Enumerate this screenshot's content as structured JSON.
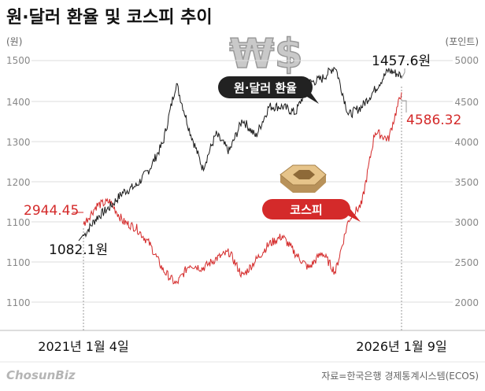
{
  "header": {
    "title": "원·달러 환율 및 코스피 추이",
    "left_unit": "(원)",
    "right_unit": "(포인트)"
  },
  "left_axis_ticks": [
    "1500",
    "1400",
    "1300",
    "1200",
    "1100",
    "1100",
    "1100"
  ],
  "right_axis_ticks": [
    "5000",
    "4500",
    "4000",
    "3500",
    "3000",
    "2500",
    "2000"
  ],
  "x_axis": {
    "start_label": "2021년 1월 4일",
    "end_label": "2026년 1월 9일"
  },
  "annotations": {
    "fx_start": "1082.1원",
    "fx_end": "1457.6원",
    "kospi_start": "2944.45",
    "kospi_end": "4586.32"
  },
  "legend_tags": {
    "fx": "원·달러 환율",
    "kospi": "코스피"
  },
  "decorative_symbol": "₩$",
  "footer": {
    "source": "자료=한국은행 경제통계시스템(ECOS)",
    "brand": "ChosunBiz"
  },
  "colors": {
    "fx_line": "#1a1a1a",
    "kospi_line": "#d42a2a",
    "grid": "#dddddd",
    "tag_black": "#222222",
    "tag_red": "#d42a2a"
  },
  "chart_data": {
    "type": "line",
    "x_start": "2021-01-04",
    "x_end": "2026-01-09",
    "series": [
      {
        "name": "원·달러 환율",
        "axis": "left",
        "x": [
          "2021-01",
          "2021-04",
          "2021-07",
          "2021-10",
          "2022-01",
          "2022-04",
          "2022-07",
          "2022-10",
          "2022-11",
          "2023-01",
          "2023-04",
          "2023-07",
          "2023-10",
          "2024-01",
          "2024-04",
          "2024-07",
          "2024-10",
          "2024-12",
          "2025-02",
          "2025-04",
          "2025-06",
          "2025-08",
          "2025-10",
          "2025-12",
          "2026-01"
        ],
        "values": [
          1082.1,
          1125,
          1150,
          1185,
          1200,
          1240,
          1300,
          1440,
          1330,
          1240,
          1320,
          1280,
          1355,
          1315,
          1385,
          1385,
          1370,
          1440,
          1450,
          1480,
          1365,
          1385,
          1425,
          1470,
          1457.6
        ]
      },
      {
        "name": "코스피",
        "axis": "right",
        "x": [
          "2021-01",
          "2021-04",
          "2021-07",
          "2021-10",
          "2022-01",
          "2022-04",
          "2022-07",
          "2022-10",
          "2022-11",
          "2023-01",
          "2023-04",
          "2023-07",
          "2023-10",
          "2024-01",
          "2024-04",
          "2024-07",
          "2024-10",
          "2024-12",
          "2025-02",
          "2025-04",
          "2025-06",
          "2025-08",
          "2025-10",
          "2025-12",
          "2026-01"
        ],
        "values": [
          2944.45,
          3180,
          3230,
          2980,
          2900,
          2700,
          2380,
          2200,
          2450,
          2400,
          2520,
          2600,
          2300,
          2500,
          2700,
          2800,
          2580,
          2400,
          2600,
          2350,
          3000,
          3200,
          4100,
          4000,
          4586.32
        ]
      }
    ],
    "left_ylim": [
      1000,
      1550
    ],
    "right_ylim": [
      1800,
      5100
    ]
  }
}
